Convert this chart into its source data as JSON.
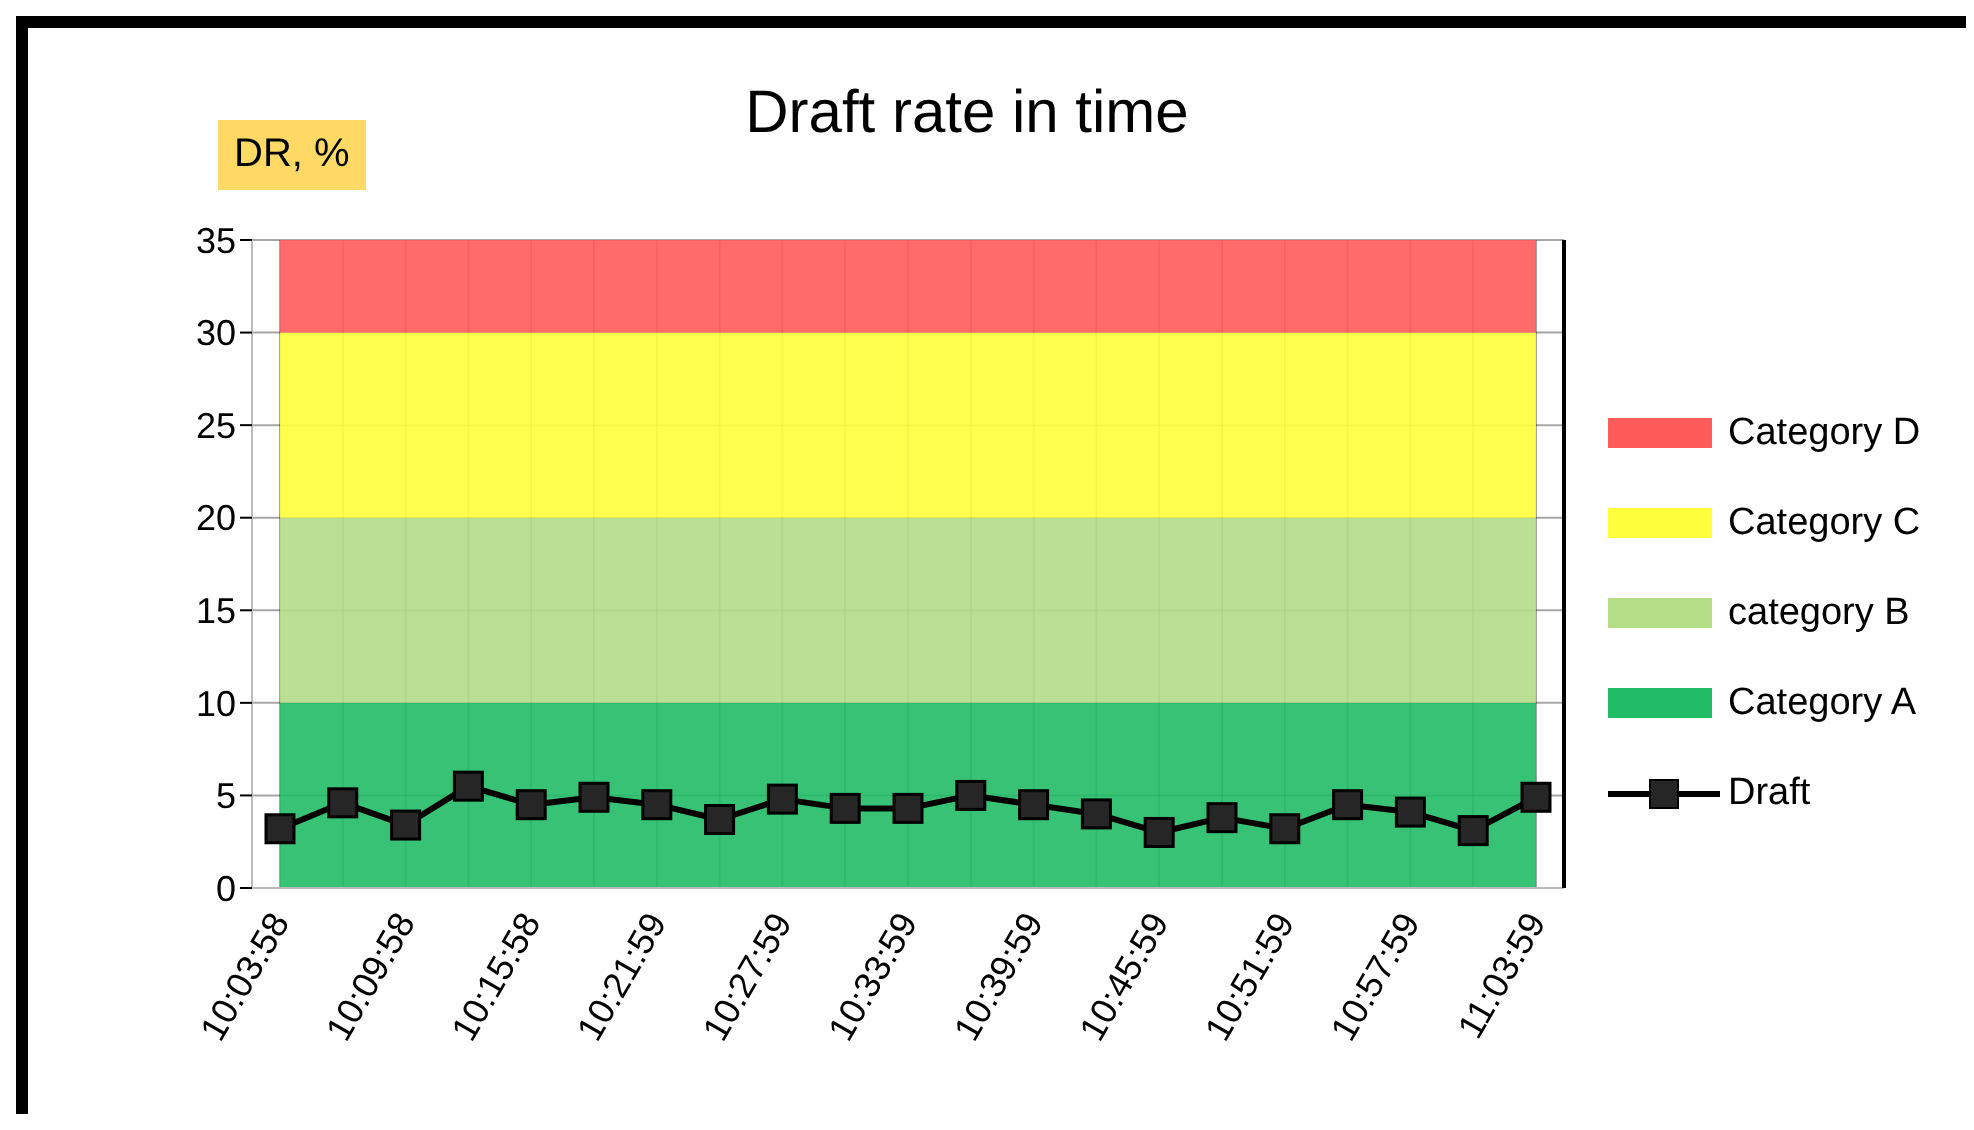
{
  "chart_data": {
    "type": "area",
    "title": "Draft rate in time",
    "ylabel": "DR, %",
    "categories": [
      "10:03:58",
      null,
      "10:09:58",
      null,
      "10:15:58",
      null,
      "10:21:59",
      null,
      "10:27:59",
      null,
      "10:33:59",
      null,
      "10:39:59",
      null,
      "10:45:59",
      null,
      "10:51:59",
      null,
      "10:57:59",
      null,
      "11:03:59"
    ],
    "stacked": true,
    "series": [
      {
        "name": "Category A",
        "color": "#22bb66",
        "values": [
          10,
          10,
          10,
          10,
          10,
          10,
          10,
          10,
          10,
          10,
          10,
          10,
          10,
          10,
          10,
          10,
          10,
          10,
          10,
          10,
          10
        ]
      },
      {
        "name": "category B",
        "color": "#b5dd87",
        "values": [
          10,
          10,
          10,
          10,
          10,
          10,
          10,
          10,
          10,
          10,
          10,
          10,
          10,
          10,
          10,
          10,
          10,
          10,
          10,
          10,
          10
        ]
      },
      {
        "name": "Category C",
        "color": "#ffff3b",
        "values": [
          10,
          10,
          10,
          10,
          10,
          10,
          10,
          10,
          10,
          10,
          10,
          10,
          10,
          10,
          10,
          10,
          10,
          10,
          10,
          10,
          10
        ]
      },
      {
        "name": "Category D",
        "color": "#ff5b5b",
        "values": [
          5,
          5,
          5,
          5,
          5,
          5,
          5,
          5,
          5,
          5,
          5,
          5,
          5,
          5,
          5,
          5,
          5,
          5,
          5,
          5,
          5
        ]
      },
      {
        "name": "Draft",
        "type": "line",
        "marker": "square",
        "line_style": "solid",
        "color": "#000000",
        "values": [
          3.2,
          4.6,
          3.4,
          5.5,
          4.5,
          4.9,
          4.5,
          3.7,
          4.8,
          4.3,
          4.3,
          5.0,
          4.5,
          4.0,
          3.0,
          3.8,
          3.2,
          4.5,
          4.1,
          3.1,
          4.9
        ]
      }
    ],
    "ylim": [
      0,
      35
    ],
    "yticks": [
      0,
      5,
      10,
      15,
      20,
      25,
      30,
      35
    ],
    "grid": true,
    "legend": "right"
  }
}
